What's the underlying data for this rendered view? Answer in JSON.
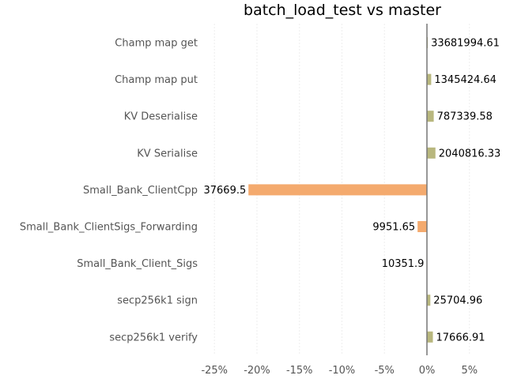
{
  "chart_data": {
    "type": "bar",
    "orientation": "horizontal",
    "title": "batch_load_test vs master",
    "xlabel": "",
    "ylabel": "",
    "categories": [
      "Champ map get",
      "Champ map put",
      "KV Deserialise",
      "KV Serialise",
      "Small_Bank_ClientCpp",
      "Small_Bank_ClientSigs_Forwarding",
      "Small_Bank_Client_Sigs",
      "secp256k1 sign",
      "secp256k1 verify"
    ],
    "values": [
      0.1,
      0.5,
      0.8,
      1.0,
      -21.0,
      -1.1,
      -0.05,
      0.4,
      0.7
    ],
    "data_labels": [
      "33681994.61",
      "1345424.64",
      "787339.58",
      "2040816.33",
      "37669.5",
      "9951.65",
      "10351.9",
      "25704.96",
      "17666.91"
    ],
    "xlim": [
      -27,
      7
    ],
    "xticks": [
      -25,
      -20,
      -15,
      -10,
      -5,
      0,
      5
    ],
    "xtick_labels": [
      "-25%",
      "-20%",
      "-15%",
      "-10%",
      "-5%",
      "0%",
      "5%"
    ],
    "grid": true,
    "legend": "none",
    "colors": {
      "positive": "#b8b77e",
      "negative": "#f4aa6e",
      "zero_line": "#777777"
    }
  }
}
